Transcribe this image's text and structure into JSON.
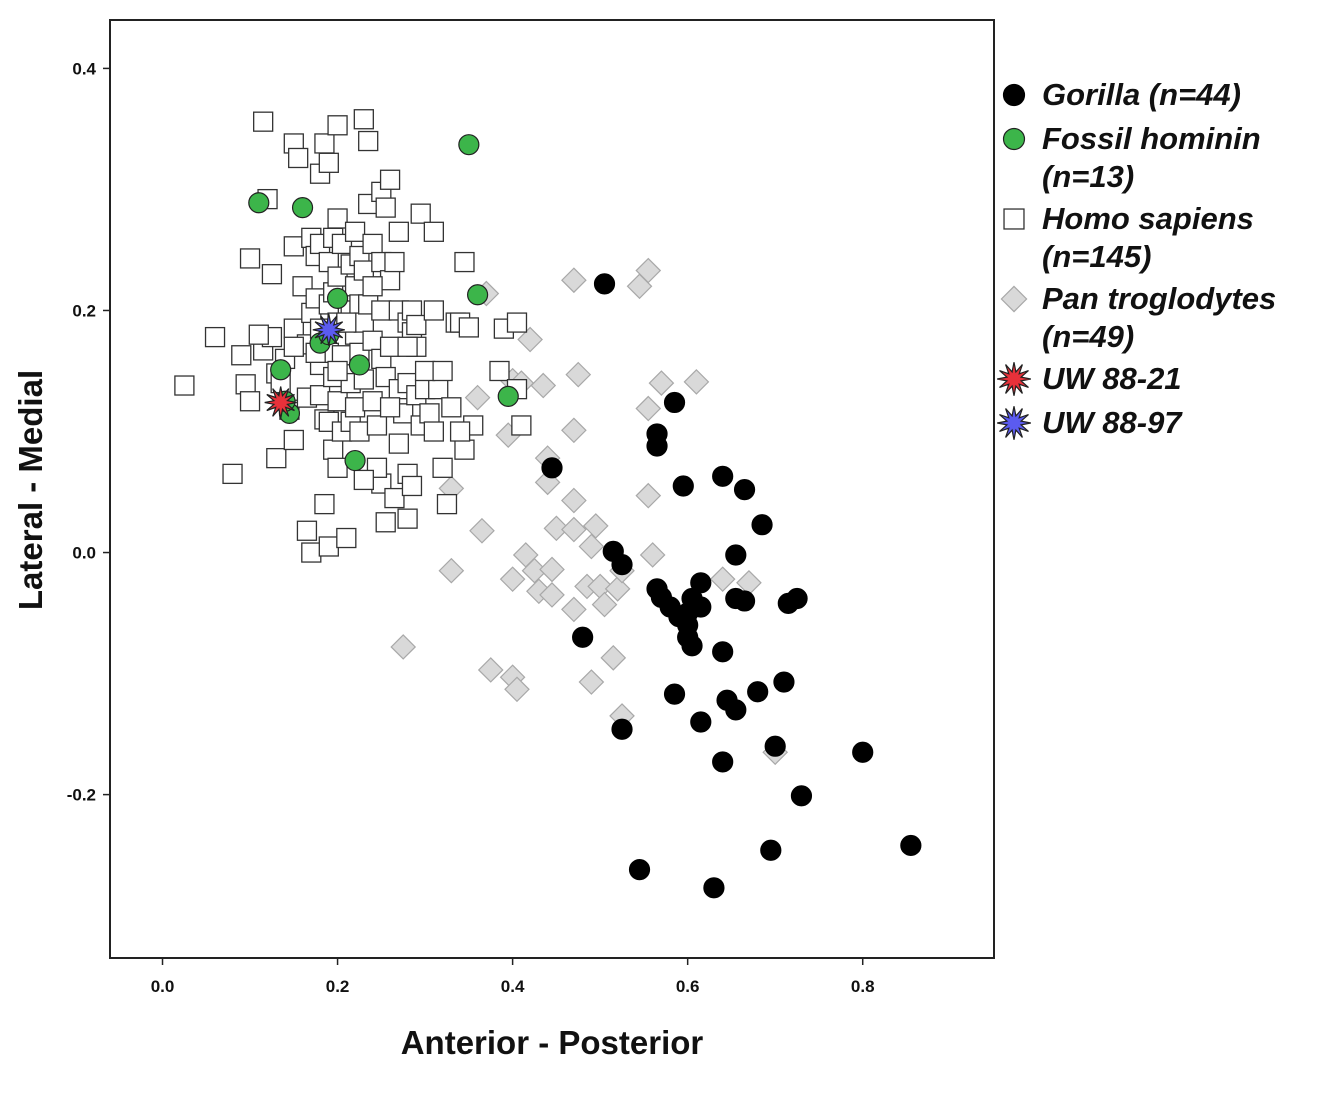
{
  "chart_data": {
    "type": "scatter",
    "title": "",
    "xlabel": "Anterior - Posterior",
    "ylabel": "Lateral - Medial",
    "xlim": [
      -0.06,
      0.95
    ],
    "ylim": [
      -0.335,
      0.44
    ],
    "xticks": [
      0.0,
      0.2,
      0.4,
      0.6,
      0.8
    ],
    "yticks": [
      -0.2,
      0.0,
      0.2,
      0.4
    ],
    "xtick_labels": [
      "0.0",
      "0.2",
      "0.4",
      "0.6",
      "0.8"
    ],
    "ytick_labels": [
      "-0.2",
      "0.0",
      "0.2",
      "0.4"
    ],
    "grid": false,
    "legend_position": "right",
    "series": [
      {
        "name": "Pan troglodytes",
        "legend_lines": [
          "Pan troglodytes",
          "(n=49)"
        ],
        "marker": "diamond",
        "fill": "#d9d9d9",
        "stroke": "#a8a8a8",
        "points": [
          [
            0.37,
            0.214
          ],
          [
            0.42,
            0.176
          ],
          [
            0.47,
            0.225
          ],
          [
            0.545,
            0.22
          ],
          [
            0.555,
            0.233
          ],
          [
            0.4,
            0.142
          ],
          [
            0.435,
            0.138
          ],
          [
            0.475,
            0.147
          ],
          [
            0.57,
            0.14
          ],
          [
            0.61,
            0.141
          ],
          [
            0.36,
            0.128
          ],
          [
            0.395,
            0.097
          ],
          [
            0.44,
            0.078
          ],
          [
            0.47,
            0.101
          ],
          [
            0.555,
            0.119
          ],
          [
            0.33,
            0.053
          ],
          [
            0.44,
            0.058
          ],
          [
            0.47,
            0.043
          ],
          [
            0.555,
            0.047
          ],
          [
            0.365,
            0.018
          ],
          [
            0.45,
            0.02
          ],
          [
            0.47,
            0.019
          ],
          [
            0.49,
            0.005
          ],
          [
            0.495,
            0.022
          ],
          [
            0.33,
            -0.015
          ],
          [
            0.415,
            -0.002
          ],
          [
            0.4,
            -0.022
          ],
          [
            0.425,
            -0.015
          ],
          [
            0.445,
            -0.014
          ],
          [
            0.43,
            -0.032
          ],
          [
            0.445,
            -0.035
          ],
          [
            0.47,
            -0.047
          ],
          [
            0.485,
            -0.028
          ],
          [
            0.5,
            -0.028
          ],
          [
            0.52,
            -0.03
          ],
          [
            0.505,
            -0.043
          ],
          [
            0.525,
            -0.015
          ],
          [
            0.56,
            -0.002
          ],
          [
            0.64,
            -0.022
          ],
          [
            0.67,
            -0.025
          ],
          [
            0.275,
            -0.078
          ],
          [
            0.375,
            -0.097
          ],
          [
            0.4,
            -0.103
          ],
          [
            0.405,
            -0.113
          ],
          [
            0.49,
            -0.107
          ],
          [
            0.515,
            -0.087
          ],
          [
            0.525,
            -0.135
          ],
          [
            0.7,
            -0.165
          ],
          [
            0.41,
            0.14
          ]
        ]
      },
      {
        "name": "Gorilla",
        "legend_lines": [
          "Gorilla (n=44)"
        ],
        "marker": "circle",
        "fill": "#000000",
        "stroke": "#000000",
        "points": [
          [
            0.505,
            0.222
          ],
          [
            0.585,
            0.124
          ],
          [
            0.565,
            0.098
          ],
          [
            0.565,
            0.088
          ],
          [
            0.445,
            0.07
          ],
          [
            0.64,
            0.063
          ],
          [
            0.595,
            0.055
          ],
          [
            0.665,
            0.052
          ],
          [
            0.685,
            0.023
          ],
          [
            0.515,
            0.001
          ],
          [
            0.525,
            -0.01
          ],
          [
            0.655,
            -0.002
          ],
          [
            0.565,
            -0.03
          ],
          [
            0.57,
            -0.037
          ],
          [
            0.615,
            -0.025
          ],
          [
            0.615,
            -0.045
          ],
          [
            0.605,
            -0.038
          ],
          [
            0.59,
            -0.053
          ],
          [
            0.6,
            -0.06
          ],
          [
            0.6,
            -0.07
          ],
          [
            0.605,
            -0.077
          ],
          [
            0.655,
            -0.038
          ],
          [
            0.665,
            -0.04
          ],
          [
            0.715,
            -0.042
          ],
          [
            0.725,
            -0.038
          ],
          [
            0.48,
            -0.07
          ],
          [
            0.64,
            -0.082
          ],
          [
            0.585,
            -0.117
          ],
          [
            0.645,
            -0.122
          ],
          [
            0.655,
            -0.13
          ],
          [
            0.68,
            -0.115
          ],
          [
            0.71,
            -0.107
          ],
          [
            0.525,
            -0.146
          ],
          [
            0.615,
            -0.14
          ],
          [
            0.7,
            -0.16
          ],
          [
            0.64,
            -0.173
          ],
          [
            0.8,
            -0.165
          ],
          [
            0.73,
            -0.201
          ],
          [
            0.855,
            -0.242
          ],
          [
            0.695,
            -0.246
          ],
          [
            0.545,
            -0.262
          ],
          [
            0.63,
            -0.277
          ],
          [
            0.58,
            -0.045
          ],
          [
            0.6,
            -0.05
          ]
        ]
      },
      {
        "name": "Homo sapiens",
        "legend_lines": [
          "Homo sapiens",
          "(n=145)"
        ],
        "marker": "square",
        "fill": "#ffffff",
        "stroke": "#333333",
        "points": [
          [
            0.025,
            0.138
          ],
          [
            0.06,
            0.178
          ],
          [
            0.08,
            0.065
          ],
          [
            0.09,
            0.163
          ],
          [
            0.095,
            0.139
          ],
          [
            0.1,
            0.243
          ],
          [
            0.1,
            0.125
          ],
          [
            0.115,
            0.356
          ],
          [
            0.115,
            0.167
          ],
          [
            0.12,
            0.292
          ],
          [
            0.125,
            0.23
          ],
          [
            0.125,
            0.178
          ],
          [
            0.13,
            0.078
          ],
          [
            0.13,
            0.148
          ],
          [
            0.14,
            0.16
          ],
          [
            0.145,
            0.118
          ],
          [
            0.15,
            0.338
          ],
          [
            0.15,
            0.253
          ],
          [
            0.15,
            0.185
          ],
          [
            0.15,
            0.093
          ],
          [
            0.155,
            0.326
          ],
          [
            0.16,
            0.22
          ],
          [
            0.165,
            0.172
          ],
          [
            0.165,
            0.128
          ],
          [
            0.165,
            0.018
          ],
          [
            0.17,
            0.26
          ],
          [
            0.17,
            0.198
          ],
          [
            0.17,
            0.0
          ],
          [
            0.175,
            0.245
          ],
          [
            0.175,
            0.21
          ],
          [
            0.18,
            0.313
          ],
          [
            0.18,
            0.255
          ],
          [
            0.18,
            0.185
          ],
          [
            0.18,
            0.155
          ],
          [
            0.18,
            0.13
          ],
          [
            0.185,
            0.338
          ],
          [
            0.185,
            0.11
          ],
          [
            0.185,
            0.04
          ],
          [
            0.19,
            0.322
          ],
          [
            0.19,
            0.24
          ],
          [
            0.19,
            0.205
          ],
          [
            0.19,
            0.165
          ],
          [
            0.19,
            0.108
          ],
          [
            0.19,
            0.005
          ],
          [
            0.195,
            0.26
          ],
          [
            0.195,
            0.215
          ],
          [
            0.195,
            0.145
          ],
          [
            0.195,
            0.085
          ],
          [
            0.2,
            0.353
          ],
          [
            0.2,
            0.276
          ],
          [
            0.2,
            0.228
          ],
          [
            0.2,
            0.19
          ],
          [
            0.2,
            0.125
          ],
          [
            0.2,
            0.07
          ],
          [
            0.205,
            0.255
          ],
          [
            0.205,
            0.163
          ],
          [
            0.205,
            0.1
          ],
          [
            0.21,
            0.012
          ],
          [
            0.215,
            0.238
          ],
          [
            0.215,
            0.2
          ],
          [
            0.215,
            0.14
          ],
          [
            0.215,
            0.108
          ],
          [
            0.22,
            0.265
          ],
          [
            0.22,
            0.22
          ],
          [
            0.22,
            0.18
          ],
          [
            0.22,
            0.12
          ],
          [
            0.225,
            0.245
          ],
          [
            0.225,
            0.205
          ],
          [
            0.225,
            0.165
          ],
          [
            0.225,
            0.1
          ],
          [
            0.23,
            0.358
          ],
          [
            0.23,
            0.233
          ],
          [
            0.23,
            0.19
          ],
          [
            0.23,
            0.143
          ],
          [
            0.235,
            0.34
          ],
          [
            0.235,
            0.288
          ],
          [
            0.235,
            0.205
          ],
          [
            0.24,
            0.255
          ],
          [
            0.24,
            0.175
          ],
          [
            0.24,
            0.125
          ],
          [
            0.245,
            0.105
          ],
          [
            0.25,
            0.298
          ],
          [
            0.25,
            0.24
          ],
          [
            0.25,
            0.2
          ],
          [
            0.25,
            0.16
          ],
          [
            0.25,
            0.057
          ],
          [
            0.255,
            0.285
          ],
          [
            0.255,
            0.145
          ],
          [
            0.255,
            0.025
          ],
          [
            0.26,
            0.308
          ],
          [
            0.26,
            0.225
          ],
          [
            0.26,
            0.17
          ],
          [
            0.265,
            0.045
          ],
          [
            0.27,
            0.265
          ],
          [
            0.27,
            0.2
          ],
          [
            0.27,
            0.135
          ],
          [
            0.27,
            0.09
          ],
          [
            0.275,
            0.115
          ],
          [
            0.28,
            0.19
          ],
          [
            0.28,
            0.14
          ],
          [
            0.28,
            0.065
          ],
          [
            0.28,
            0.028
          ],
          [
            0.285,
            0.2
          ],
          [
            0.285,
            0.182
          ],
          [
            0.285,
            0.055
          ],
          [
            0.29,
            0.188
          ],
          [
            0.29,
            0.17
          ],
          [
            0.29,
            0.13
          ],
          [
            0.295,
            0.28
          ],
          [
            0.295,
            0.105
          ],
          [
            0.3,
            0.135
          ],
          [
            0.305,
            0.115
          ],
          [
            0.31,
            0.265
          ],
          [
            0.31,
            0.1
          ],
          [
            0.315,
            0.135
          ],
          [
            0.32,
            0.07
          ],
          [
            0.325,
            0.04
          ],
          [
            0.33,
            0.12
          ],
          [
            0.335,
            0.19
          ],
          [
            0.34,
            0.19
          ],
          [
            0.345,
            0.24
          ],
          [
            0.345,
            0.085
          ],
          [
            0.35,
            0.186
          ],
          [
            0.355,
            0.105
          ],
          [
            0.385,
            0.15
          ],
          [
            0.39,
            0.185
          ],
          [
            0.405,
            0.19
          ],
          [
            0.41,
            0.105
          ],
          [
            0.405,
            0.135
          ],
          [
            0.11,
            0.18
          ],
          [
            0.135,
            0.14
          ],
          [
            0.15,
            0.17
          ],
          [
            0.245,
            0.07
          ],
          [
            0.21,
            0.19
          ],
          [
            0.3,
            0.15
          ],
          [
            0.32,
            0.15
          ],
          [
            0.265,
            0.24
          ],
          [
            0.28,
            0.17
          ],
          [
            0.24,
            0.22
          ],
          [
            0.31,
            0.2
          ],
          [
            0.2,
            0.15
          ],
          [
            0.175,
            0.165
          ],
          [
            0.26,
            0.12
          ],
          [
            0.34,
            0.1
          ],
          [
            0.23,
            0.06
          ]
        ]
      },
      {
        "name": "Fossil hominin",
        "legend_lines": [
          "Fossil hominin",
          "(n=13)"
        ],
        "marker": "circle",
        "fill": "#3cb54a",
        "stroke": "#222222",
        "points": [
          [
            0.35,
            0.337
          ],
          [
            0.11,
            0.289
          ],
          [
            0.16,
            0.285
          ],
          [
            0.36,
            0.213
          ],
          [
            0.18,
            0.173
          ],
          [
            0.225,
            0.155
          ],
          [
            0.135,
            0.151
          ],
          [
            0.395,
            0.129
          ],
          [
            0.145,
            0.115
          ],
          [
            0.22,
            0.076
          ],
          [
            0.19,
            0.18
          ],
          [
            0.14,
            0.125
          ],
          [
            0.2,
            0.21
          ]
        ]
      },
      {
        "name": "UW 88-21",
        "legend_lines": [
          "UW 88-21"
        ],
        "marker": "star",
        "fill": "#e8313a",
        "stroke": "#222222",
        "points": [
          [
            0.135,
            0.124
          ]
        ]
      },
      {
        "name": "UW 88-97",
        "legend_lines": [
          "UW 88-97"
        ],
        "marker": "star",
        "fill": "#5b5bf0",
        "stroke": "#222222",
        "points": [
          [
            0.19,
            0.184
          ]
        ]
      }
    ],
    "legend_order": [
      "Gorilla",
      "Fossil hominin",
      "Homo sapiens",
      "Pan troglodytes",
      "UW 88-21",
      "UW 88-97"
    ]
  }
}
